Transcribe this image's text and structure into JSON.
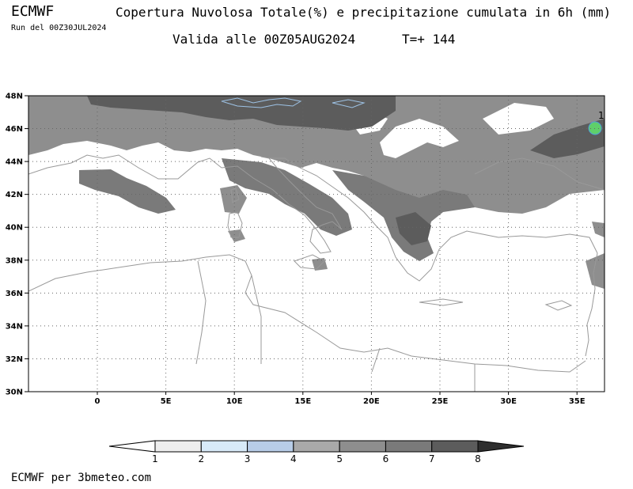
{
  "header": {
    "model": "ECMWF",
    "run": "Run del 00Z30JUL2024",
    "title": "Copertura Nuvolosa Totale(%) e precipitazione cumulata in 6h (mm)",
    "valid": "Valida alle 00Z05AUG2024",
    "step": "T=+ 144"
  },
  "map": {
    "lat_labels": [
      "48N",
      "46N",
      "44N",
      "42N",
      "40N",
      "38N",
      "36N",
      "34N",
      "32N",
      "30N"
    ],
    "lon_labels": [
      "0",
      "5E",
      "10E",
      "15E",
      "20E",
      "25E",
      "30E",
      "35E"
    ],
    "precip_marker": "1"
  },
  "colorbar": {
    "labels": [
      "1",
      "2",
      "3",
      "4",
      "5",
      "6",
      "7",
      "8"
    ],
    "colors": [
      "#ffffff",
      "#eeeeee",
      "#d8eaf8",
      "#b8cde8",
      "#a9a9a9",
      "#8e8e8e",
      "#7a7a7a",
      "#5c5c5c",
      "#2e2e2e"
    ]
  },
  "footer": "ECMWF per 3bmeteo.com"
}
